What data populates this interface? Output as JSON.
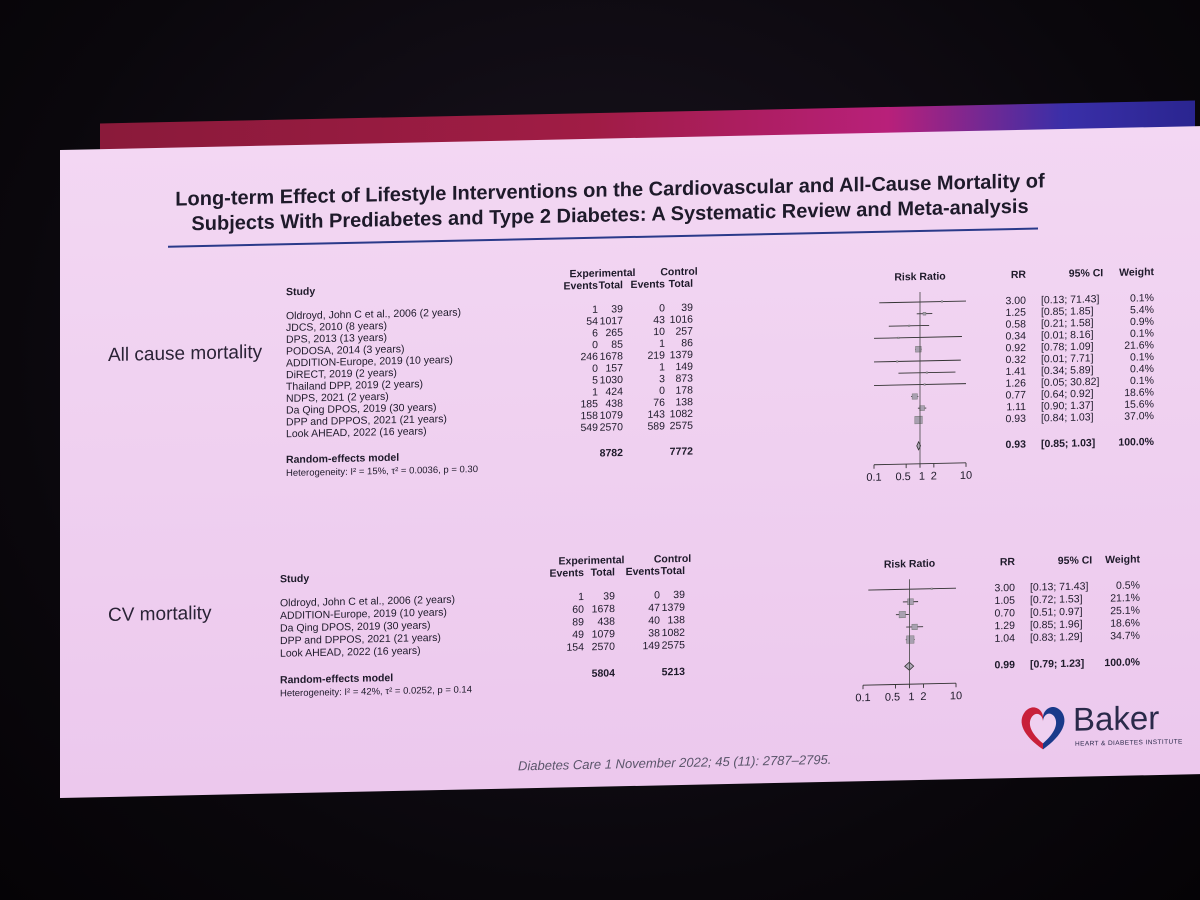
{
  "slide": {
    "title_line1": "Long-term Effect of Lifestyle Interventions on the Cardiovascular and All-Cause Mortality of",
    "title_line2": "Subjects With Prediabetes and Type 2 Diabetes: A Systematic Review and Meta-analysis",
    "citation": "Diabetes Care 1 November 2022; 45 (11): 2787–2795.",
    "logo_word": "Baker",
    "logo_sub": "HEART & DIABETES INSTITUTE"
  },
  "colors": {
    "banner_red": "#a01c45",
    "banner_blue": "#2a2590",
    "slide_bg": "#efd0f0",
    "logo_red": "#c8203a",
    "logo_blue": "#1a3a8a"
  },
  "chart_data": [
    {
      "type": "forest",
      "section_label": "All cause mortality",
      "header": {
        "group1": "Experimental",
        "group2": "Control",
        "study": "Study",
        "events": "Events",
        "total": "Total",
        "risk_ratio": "Risk Ratio",
        "rr": "RR",
        "ci": "95% CI",
        "weight": "Weight"
      },
      "studies": [
        {
          "name": "Oldroyd, John C et al., 2006 (2 years)",
          "exp_events": "1",
          "exp_total": "39",
          "ctl_events": "0",
          "ctl_total": "39",
          "rr": 3.0,
          "lo": 0.13,
          "hi": 71.43,
          "rr_text": "3.00",
          "ci_text": "[0.13; 71.43]",
          "weight": "0.1%"
        },
        {
          "name": "JDCS, 2010 (8 years)",
          "exp_events": "54",
          "exp_total": "1017",
          "ctl_events": "43",
          "ctl_total": "1016",
          "rr": 1.25,
          "lo": 0.85,
          "hi": 1.85,
          "rr_text": "1.25",
          "ci_text": "[0.85; 1.85]",
          "weight": "5.4%"
        },
        {
          "name": "DPS, 2013 (13 years)",
          "exp_events": "6",
          "exp_total": "265",
          "ctl_events": "10",
          "ctl_total": "257",
          "rr": 0.58,
          "lo": 0.21,
          "hi": 1.58,
          "rr_text": "0.58",
          "ci_text": "[0.21; 1.58]",
          "weight": "0.9%"
        },
        {
          "name": "PODOSA, 2014 (3 years)",
          "exp_events": "0",
          "exp_total": "85",
          "ctl_events": "1",
          "ctl_total": "86",
          "rr": 0.34,
          "lo": 0.01,
          "hi": 8.16,
          "rr_text": "0.34",
          "ci_text": "[0.01; 8.16]",
          "weight": "0.1%"
        },
        {
          "name": "ADDITION-Europe, 2019 (10 years)",
          "exp_events": "246",
          "exp_total": "1678",
          "ctl_events": "219",
          "ctl_total": "1379",
          "rr": 0.92,
          "lo": 0.78,
          "hi": 1.09,
          "rr_text": "0.92",
          "ci_text": "[0.78; 1.09]",
          "weight": "21.6%"
        },
        {
          "name": "DiRECT, 2019 (2 years)",
          "exp_events": "0",
          "exp_total": "157",
          "ctl_events": "1",
          "ctl_total": "149",
          "rr": 0.32,
          "lo": 0.01,
          "hi": 7.71,
          "rr_text": "0.32",
          "ci_text": "[0.01; 7.71]",
          "weight": "0.1%"
        },
        {
          "name": "Thailand DPP, 2019 (2 years)",
          "exp_events": "5",
          "exp_total": "1030",
          "ctl_events": "3",
          "ctl_total": "873",
          "rr": 1.41,
          "lo": 0.34,
          "hi": 5.89,
          "rr_text": "1.41",
          "ci_text": "[0.34; 5.89]",
          "weight": "0.4%"
        },
        {
          "name": "NDPS, 2021 (2 years)",
          "exp_events": "1",
          "exp_total": "424",
          "ctl_events": "0",
          "ctl_total": "178",
          "rr": 1.26,
          "lo": 0.05,
          "hi": 30.82,
          "rr_text": "1.26",
          "ci_text": "[0.05; 30.82]",
          "weight": "0.1%"
        },
        {
          "name": "Da Qing DPOS, 2019 (30 years)",
          "exp_events": "185",
          "exp_total": "438",
          "ctl_events": "76",
          "ctl_total": "138",
          "rr": 0.77,
          "lo": 0.64,
          "hi": 0.92,
          "rr_text": "0.77",
          "ci_text": "[0.64; 0.92]",
          "weight": "18.6%"
        },
        {
          "name": "DPP and DPPOS, 2021 (21 years)",
          "exp_events": "158",
          "exp_total": "1079",
          "ctl_events": "143",
          "ctl_total": "1082",
          "rr": 1.11,
          "lo": 0.9,
          "hi": 1.37,
          "rr_text": "1.11",
          "ci_text": "[0.90; 1.37]",
          "weight": "15.6%"
        },
        {
          "name": "Look AHEAD, 2022 (16 years)",
          "exp_events": "549",
          "exp_total": "2570",
          "ctl_events": "589",
          "ctl_total": "2575",
          "rr": 0.93,
          "lo": 0.84,
          "hi": 1.03,
          "rr_text": "0.93",
          "ci_text": "[0.84; 1.03]",
          "weight": "37.0%"
        }
      ],
      "pooled": {
        "label": "Random-effects model",
        "exp_total": "8782",
        "ctl_total": "7772",
        "rr": 0.93,
        "lo": 0.85,
        "hi": 1.03,
        "rr_text": "0.93",
        "ci_text": "[0.85; 1.03]",
        "weight": "100.0%"
      },
      "heterogeneity": "Heterogeneity: I² = 15%, τ² = 0.0036, p = 0.30",
      "x_scale": "log",
      "xlim": [
        0.1,
        10
      ],
      "x_ticks": [
        0.1,
        0.5,
        1,
        2,
        10
      ],
      "x_tick_labels": [
        "0.1",
        "0.5",
        "1",
        "2",
        "10"
      ]
    },
    {
      "type": "forest",
      "section_label": "CV mortality",
      "header": {
        "group1": "Experimental",
        "group2": "Control",
        "study": "Study",
        "events": "Events",
        "total": "Total",
        "risk_ratio": "Risk Ratio",
        "rr": "RR",
        "ci": "95% CI",
        "weight": "Weight"
      },
      "studies": [
        {
          "name": "Oldroyd, John C et al., 2006 (2 years)",
          "exp_events": "1",
          "exp_total": "39",
          "ctl_events": "0",
          "ctl_total": "39",
          "rr": 3.0,
          "lo": 0.13,
          "hi": 71.43,
          "rr_text": "3.00",
          "ci_text": "[0.13; 71.43]",
          "weight": "0.5%"
        },
        {
          "name": "ADDITION-Europe, 2019 (10 years)",
          "exp_events": "60",
          "exp_total": "1678",
          "ctl_events": "47",
          "ctl_total": "1379",
          "rr": 1.05,
          "lo": 0.72,
          "hi": 1.53,
          "rr_text": "1.05",
          "ci_text": "[0.72; 1.53]",
          "weight": "21.1%"
        },
        {
          "name": "Da Qing DPOS, 2019 (30 years)",
          "exp_events": "89",
          "exp_total": "438",
          "ctl_events": "40",
          "ctl_total": "138",
          "rr": 0.7,
          "lo": 0.51,
          "hi": 0.97,
          "rr_text": "0.70",
          "ci_text": "[0.51; 0.97]",
          "weight": "25.1%"
        },
        {
          "name": "DPP and DPPOS, 2021 (21 years)",
          "exp_events": "49",
          "exp_total": "1079",
          "ctl_events": "38",
          "ctl_total": "1082",
          "rr": 1.29,
          "lo": 0.85,
          "hi": 1.96,
          "rr_text": "1.29",
          "ci_text": "[0.85; 1.96]",
          "weight": "18.6%"
        },
        {
          "name": "Look AHEAD, 2022 (16 years)",
          "exp_events": "154",
          "exp_total": "2570",
          "ctl_events": "149",
          "ctl_total": "2575",
          "rr": 1.04,
          "lo": 0.83,
          "hi": 1.29,
          "rr_text": "1.04",
          "ci_text": "[0.83; 1.29]",
          "weight": "34.7%"
        }
      ],
      "pooled": {
        "label": "Random-effects model",
        "exp_total": "5804",
        "ctl_total": "5213",
        "rr": 0.99,
        "lo": 0.79,
        "hi": 1.23,
        "rr_text": "0.99",
        "ci_text": "[0.79; 1.23]",
        "weight": "100.0%"
      },
      "heterogeneity": "Heterogeneity: I² = 42%, τ² = 0.0252, p = 0.14",
      "x_scale": "log",
      "xlim": [
        0.1,
        10
      ],
      "x_ticks": [
        0.1,
        0.5,
        1,
        2,
        10
      ],
      "x_tick_labels": [
        "0.1",
        "0.5",
        "1",
        "2",
        "10"
      ]
    }
  ]
}
